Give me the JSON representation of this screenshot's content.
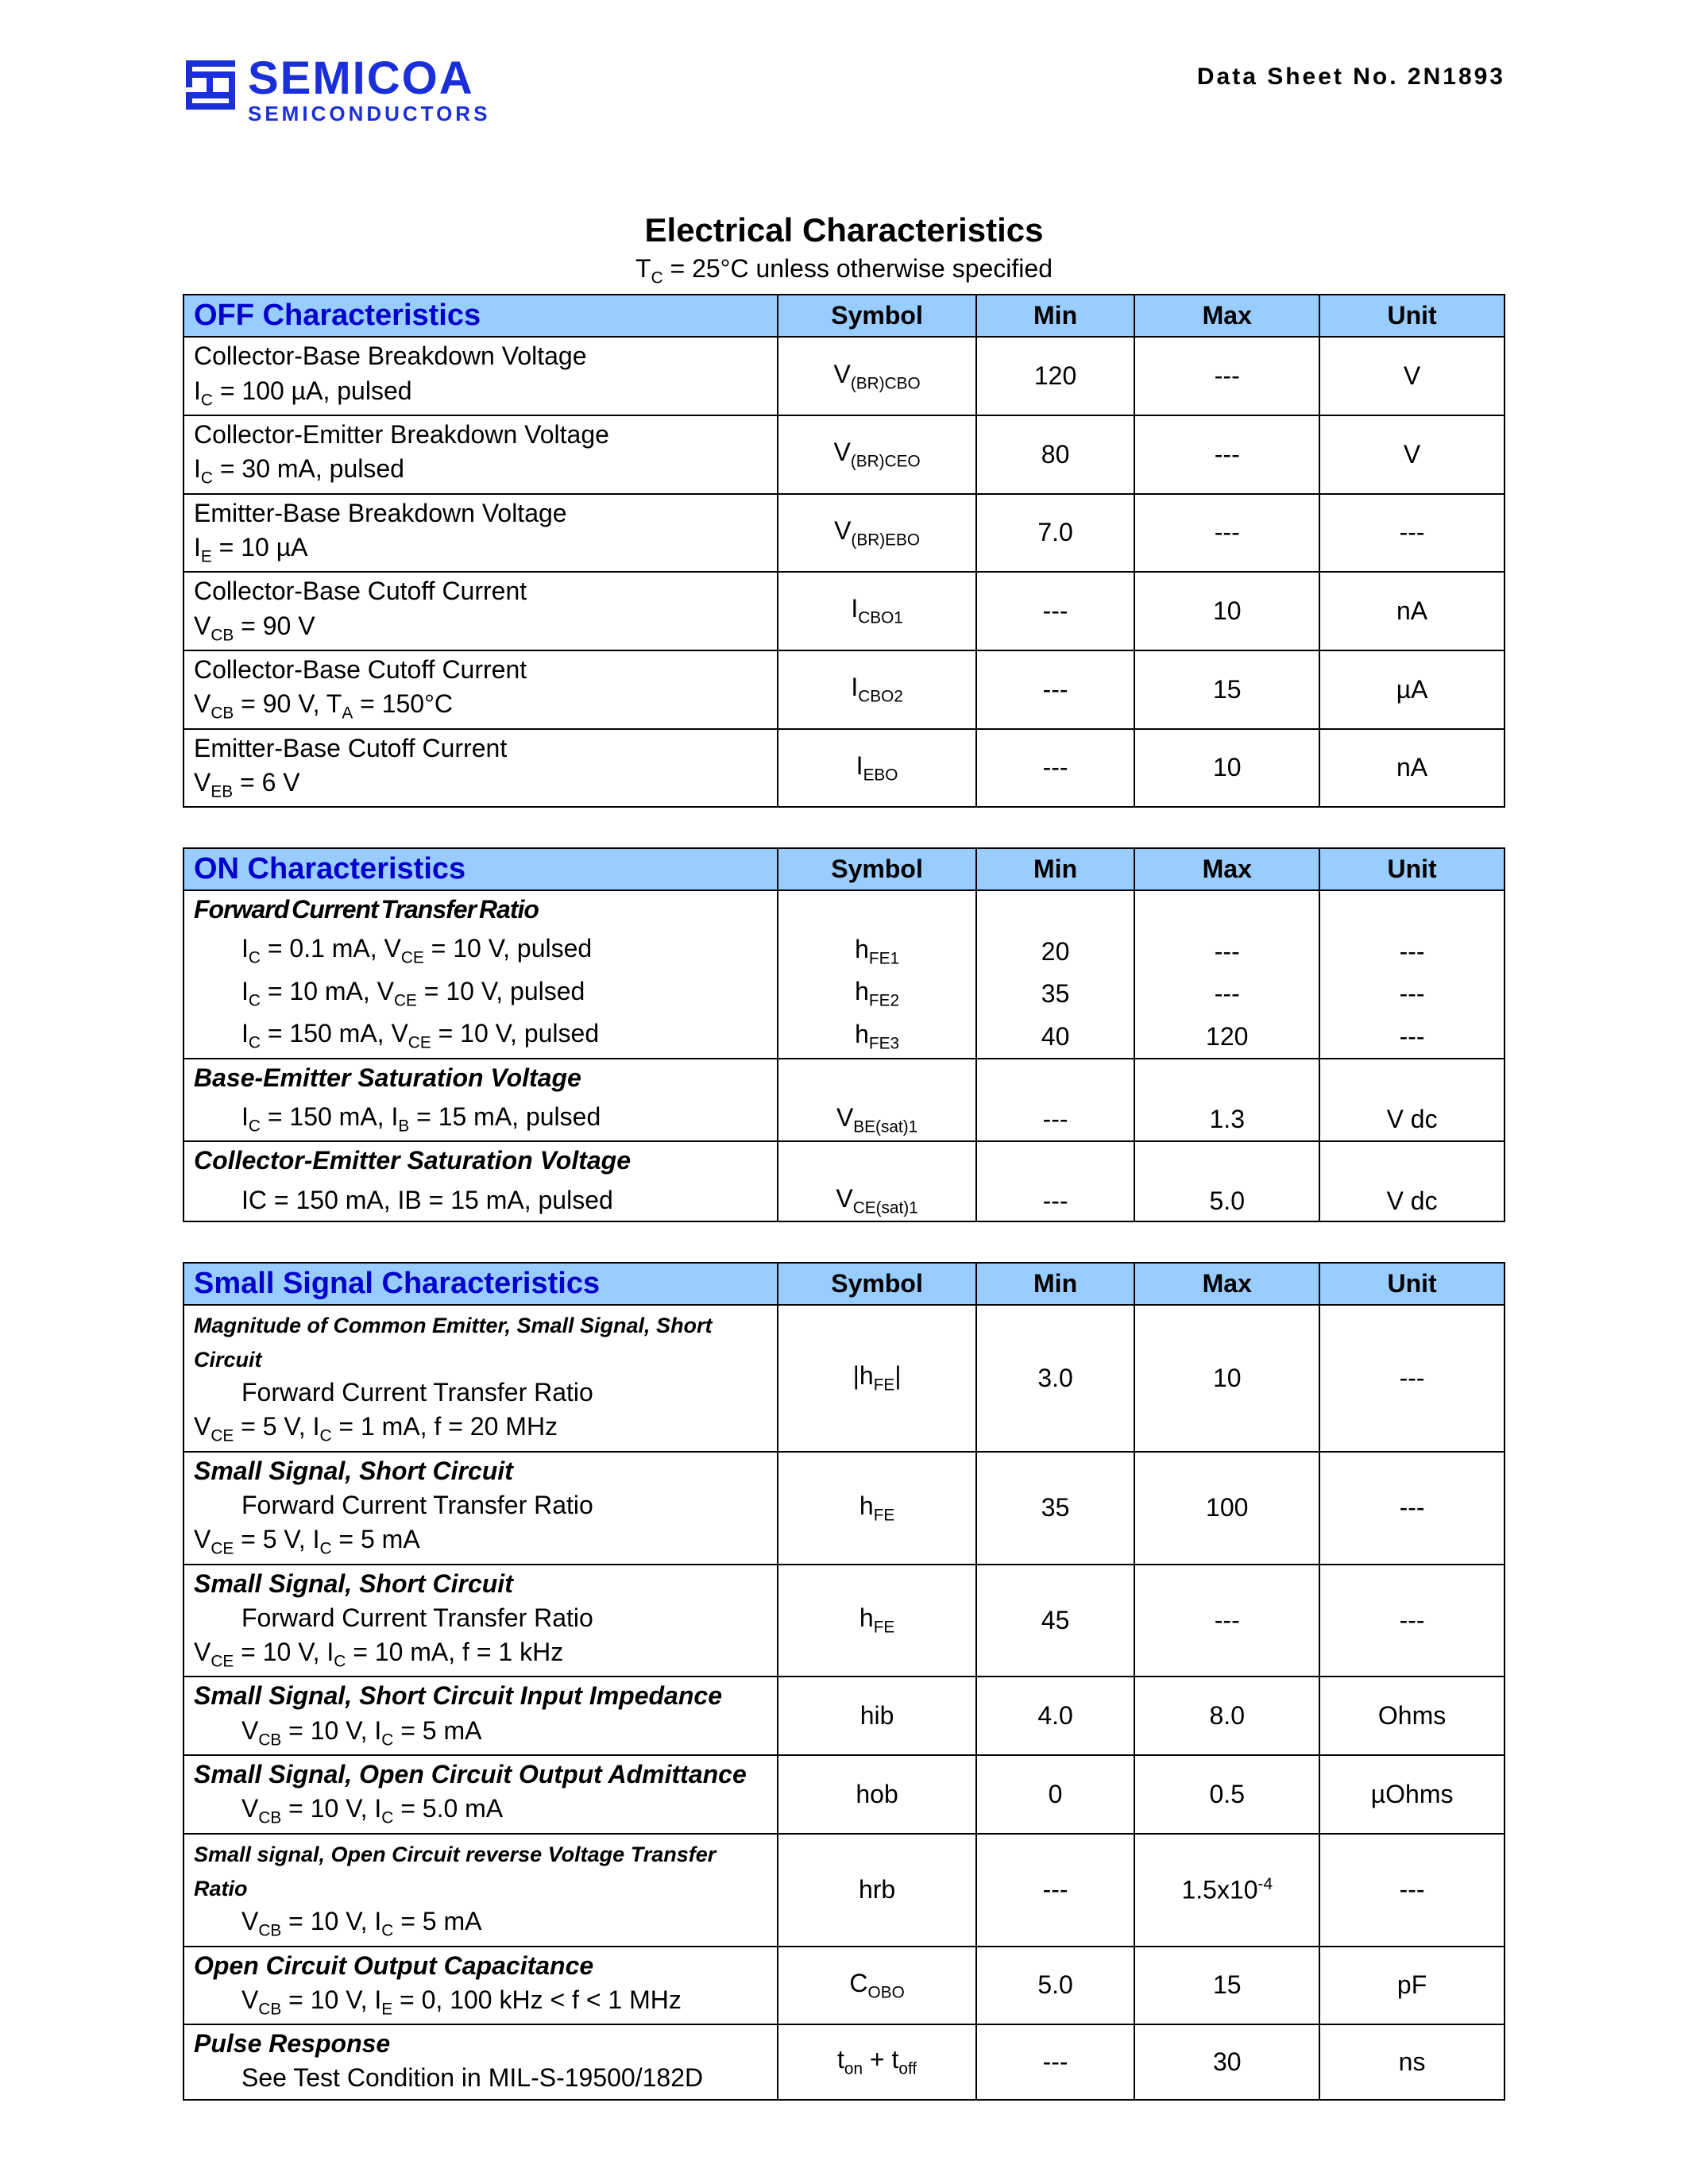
{
  "brand": {
    "name": "SEMICOA",
    "subline": "SEMICONDUCTORS",
    "logo_color": "#1a2fd8"
  },
  "sheet_number": "Data Sheet No. 2N1893",
  "title": "Electrical Characteristics",
  "subtitle_html": "T<sub>C</sub> = 25°C unless otherwise specified",
  "columns": {
    "symbol": "Symbol",
    "min": "Min",
    "max": "Max",
    "unit": "Unit"
  },
  "colors": {
    "header_bg": "#99ccff",
    "section_text": "#0000cc",
    "border": "#000000"
  },
  "sections": [
    {
      "name": "OFF Characteristics",
      "rows": [
        {
          "desc": "Collector-Base Breakdown Voltage",
          "cond_html": "I<sub>C</sub> = 100 µA, pulsed",
          "symbol_html": "V<sub>(BR)CBO</sub>",
          "min": "120",
          "max": "---",
          "unit": "V"
        },
        {
          "desc": "Collector-Emitter Breakdown Voltage",
          "cond_html": "I<sub>C</sub> = 30 mA, pulsed",
          "symbol_html": "V<sub>(BR)CEO</sub>",
          "min": "80",
          "max": "---",
          "unit": "V"
        },
        {
          "desc": "Emitter-Base Breakdown Voltage",
          "cond_html": "I<sub>E</sub> = 10 µA",
          "symbol_html": "V<sub>(BR)EBO</sub>",
          "min": "7.0",
          "max": "---",
          "unit": "---"
        },
        {
          "desc": "Collector-Base Cutoff Current",
          "cond_html": "V<sub>CB</sub> = 90 V",
          "symbol_html": "I<sub>CBO1</sub>",
          "min": "---",
          "max": "10",
          "unit": "nA"
        },
        {
          "desc": "Collector-Base Cutoff Current",
          "cond_html": "V<sub>CB</sub> = 90 V, T<sub>A</sub> = 150°C",
          "symbol_html": "I<sub>CBO2</sub>",
          "min": "---",
          "max": "15",
          "unit": "µA"
        },
        {
          "desc": "Emitter-Base Cutoff Current",
          "cond_html": "V<sub>EB</sub> = 6 V",
          "symbol_html": "I<sub>EBO</sub>",
          "min": "---",
          "max": "10",
          "unit": "nA"
        }
      ]
    },
    {
      "name": "ON Characteristics",
      "groups": [
        {
          "title": "Forward Current Transfer Ratio",
          "title_style": "tight",
          "lines": [
            {
              "cond_html": "I<sub>C</sub> = 0.1 mA, V<sub>CE</sub> = 10 V, pulsed",
              "symbol_html": "h<sub>FE1</sub>",
              "min": "20",
              "max": "---",
              "unit": "---"
            },
            {
              "cond_html": "I<sub>C</sub> = 10 mA, V<sub>CE</sub> = 10 V, pulsed",
              "symbol_html": "h<sub>FE2</sub>",
              "min": "35",
              "max": "---",
              "unit": "---"
            },
            {
              "cond_html": "I<sub>C</sub> = 150 mA, V<sub>CE</sub> = 10 V, pulsed",
              "symbol_html": "h<sub>FE3</sub>",
              "min": "40",
              "max": "120",
              "unit": "---"
            }
          ]
        },
        {
          "title": "Base-Emitter Saturation Voltage",
          "lines": [
            {
              "cond_html": "I<sub>C</sub> = 150 mA, I<sub>B</sub> = 15 mA, pulsed",
              "symbol_html": "V<sub>BE(sat)1</sub>",
              "min": "---",
              "max": "1.3",
              "unit": "V dc"
            }
          ]
        },
        {
          "title": "Collector-Emitter Saturation Voltage",
          "lines": [
            {
              "cond_html": "IC = 150 mA, IB = 15 mA, pulsed",
              "symbol_html": "V<sub>CE(sat)1</sub>",
              "min": "---",
              "max": "5.0",
              "unit": "V dc"
            }
          ]
        }
      ]
    },
    {
      "name": "Small Signal Characteristics",
      "rows": [
        {
          "pre_html": "Magnitude of Common Emitter, Small Signal, Short Circuit",
          "pre_small": true,
          "desc_indent": "Forward Current Transfer Ratio",
          "cond_html": "V<sub>CE</sub> = 5 V, I<sub>C</sub> = 1 mA, f = 20 MHz",
          "symbol_html": "|h<sub>FE</sub>|",
          "min": "3.0",
          "max": "10",
          "unit": "---"
        },
        {
          "pre_html": "Small Signal, Short Circuit",
          "desc_indent": "Forward Current Transfer Ratio",
          "cond_html": "V<sub>CE</sub> = 5 V, I<sub>C</sub> = 5 mA",
          "symbol_html": "h<sub>FE</sub>",
          "min": "35",
          "max": "100",
          "unit": "---"
        },
        {
          "pre_html": "Small Signal, Short Circuit",
          "desc_indent": "Forward Current Transfer Ratio",
          "cond_html": "V<sub>CE</sub> = 10 V, I<sub>C</sub> = 10 mA, f = 1 kHz",
          "symbol_html": "h<sub>FE</sub>",
          "min": "45",
          "max": "---",
          "unit": "---"
        },
        {
          "pre_html": "Small Signal, Short Circuit Input Impedance",
          "cond_html": "V<sub>CB</sub> = 10 V, I<sub>C</sub> = 5 mA",
          "symbol_html": "hib",
          "min": "4.0",
          "max": "8.0",
          "unit": "Ohms"
        },
        {
          "pre_html": "Small Signal, Open Circuit Output Admittance",
          "cond_html": "V<sub>CB</sub> = 10 V, I<sub>C</sub> = 5.0 mA",
          "symbol_html": "hob",
          "min": "0",
          "max": "0.5",
          "unit": "µOhms"
        },
        {
          "pre_html": "Small signal, Open Circuit reverse Voltage Transfer Ratio",
          "pre_small": true,
          "cond_html": "V<sub>CB</sub> = 10 V, I<sub>C</sub> = 5 mA",
          "symbol_html": "hrb",
          "min": "---",
          "max_html": "1.5x10<sup>-4</sup>",
          "unit": "---"
        },
        {
          "pre_html": "Open Circuit Output Capacitance",
          "cond_html": "V<sub>CB</sub> = 10 V, I<sub>E</sub> = 0, 100 kHz < f < 1 MHz",
          "symbol_html": "C<sub>OBO</sub>",
          "min": "5.0",
          "max": "15",
          "unit": "pF"
        },
        {
          "pre_html": "Pulse Response",
          "cond_html": "See Test Condition in MIL-S-19500/182D",
          "cond_indent": true,
          "symbol_html": "t<sub>on</sub> + t<sub>off</sub>",
          "min": "---",
          "max": "30",
          "unit": "ns"
        }
      ]
    }
  ]
}
